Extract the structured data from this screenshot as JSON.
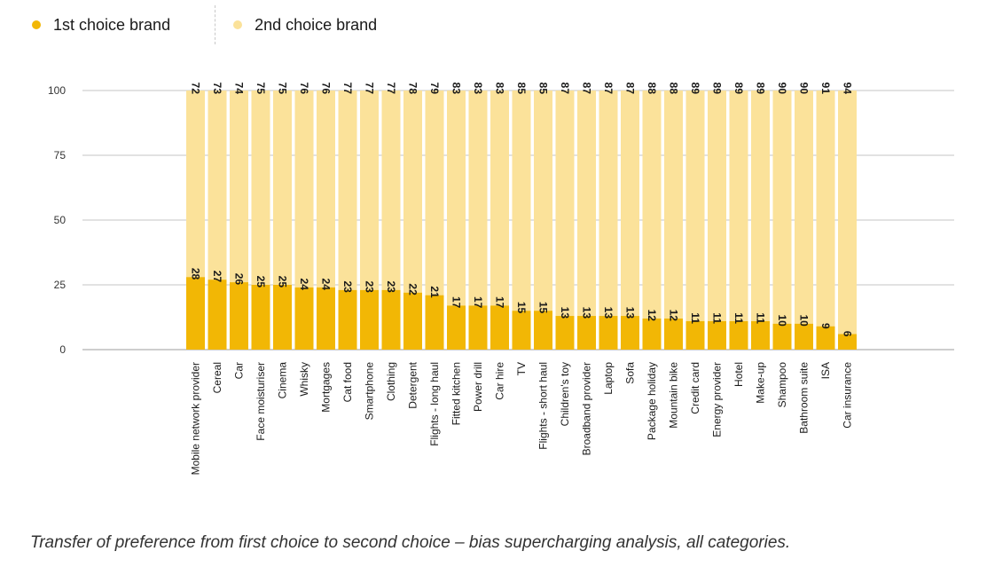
{
  "legend": {
    "first": {
      "label": "1st choice brand",
      "color": "#f2b705"
    },
    "second": {
      "label": "2nd choice brand",
      "color": "#fbe29a"
    }
  },
  "caption": "Transfer of preference from first choice to second choice – bias supercharging analysis, all categories.",
  "chart_data": {
    "type": "bar",
    "stacked": true,
    "title": "",
    "xlabel": "",
    "ylabel": "",
    "ylim": [
      0,
      100
    ],
    "yticks": [
      0,
      25,
      50,
      75,
      100
    ],
    "grid": true,
    "legend_position": "top-left",
    "categories": [
      "Mobile network provider",
      "Cereal",
      "Car",
      "Face moisturiser",
      "Cinema",
      "Whisky",
      "Mortgages",
      "Cat food",
      "Smartphone",
      "Clothing",
      "Detergent",
      "Flights - long haul",
      "Fitted kitchen",
      "Power drill",
      "Car hire",
      "TV",
      "Flights - short haul",
      "Children's toy",
      "Broadband provider",
      "Laptop",
      "Sofa",
      "Package holiday",
      "Mountain bike",
      "Credit card",
      "Energy provider",
      "Hotel",
      "Make-up",
      "Shampoo",
      "Bathroom suite",
      "ISA",
      "Car insurance"
    ],
    "series": [
      {
        "name": "1st choice brand",
        "color": "#f2b705",
        "values": [
          28,
          27,
          26,
          25,
          25,
          24,
          24,
          23,
          23,
          23,
          22,
          21,
          17,
          17,
          17,
          15,
          15,
          13,
          13,
          13,
          13,
          12,
          12,
          11,
          11,
          11,
          11,
          10,
          10,
          9,
          6
        ]
      },
      {
        "name": "2nd choice brand",
        "color": "#fbe29a",
        "values": [
          72,
          73,
          74,
          75,
          75,
          76,
          76,
          77,
          77,
          77,
          78,
          79,
          83,
          83,
          83,
          85,
          85,
          87,
          87,
          87,
          87,
          88,
          88,
          89,
          89,
          89,
          89,
          90,
          90,
          91,
          94
        ]
      }
    ]
  }
}
